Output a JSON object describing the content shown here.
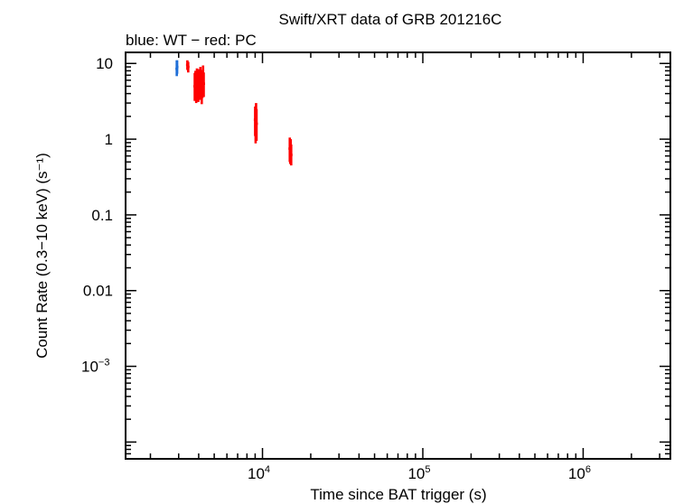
{
  "chart_data": {
    "type": "scatter",
    "title": "Swift/XRT data of GRB 201216C",
    "subtitle": "blue: WT − red: PC",
    "xlabel": "Time since BAT trigger (s)",
    "ylabel": "Count Rate (0.3−10 keV) (s⁻¹)",
    "x_scale": "log",
    "y_scale": "log",
    "xlim": [
      1400,
      3500000
    ],
    "ylim": [
      6e-05,
      14
    ],
    "grid": false,
    "x_tick_labels": [
      {
        "value": 10000,
        "base": "10",
        "exp": "4"
      },
      {
        "value": 100000,
        "base": "10",
        "exp": "5"
      },
      {
        "value": 1000000,
        "base": "10",
        "exp": "6"
      }
    ],
    "y_tick_labels": [
      {
        "value": 10,
        "text": "10"
      },
      {
        "value": 1,
        "text": "1"
      },
      {
        "value": 0.1,
        "text": "0.1"
      },
      {
        "value": 0.01,
        "text": "0.01"
      },
      {
        "value": 0.001,
        "base": "10",
        "exp": "−3"
      }
    ],
    "series": [
      {
        "color": "#1f6fd8",
        "points": [
          {
            "x": 2920,
            "y": 8.5,
            "ylo": 6.8,
            "yhi": 11.0
          },
          {
            "x": 2935,
            "y": 9.0,
            "ylo": 7.3,
            "yhi": 11.0
          }
        ]
      },
      {
        "color": "#ff0000",
        "points": [
          {
            "x": 3400,
            "y": 9.6,
            "ylo": 8.2,
            "yhi": 11.0
          },
          {
            "x": 3440,
            "y": 9.0,
            "ylo": 7.6,
            "yhi": 10.5
          },
          {
            "x": 3780,
            "y": 5.0,
            "ylo": 3.2,
            "yhi": 7.5
          },
          {
            "x": 3820,
            "y": 5.5,
            "ylo": 3.6,
            "yhi": 8.0
          },
          {
            "x": 3860,
            "y": 4.6,
            "ylo": 3.0,
            "yhi": 7.0
          },
          {
            "x": 3900,
            "y": 6.0,
            "ylo": 4.0,
            "yhi": 8.6
          },
          {
            "x": 3940,
            "y": 5.2,
            "ylo": 3.4,
            "yhi": 7.8
          },
          {
            "x": 3980,
            "y": 4.8,
            "ylo": 3.1,
            "yhi": 7.2
          },
          {
            "x": 4020,
            "y": 5.8,
            "ylo": 3.9,
            "yhi": 8.4
          },
          {
            "x": 4060,
            "y": 5.0,
            "ylo": 3.3,
            "yhi": 7.4
          },
          {
            "x": 4100,
            "y": 6.4,
            "ylo": 4.4,
            "yhi": 9.0
          },
          {
            "x": 4140,
            "y": 5.6,
            "ylo": 3.7,
            "yhi": 8.2
          },
          {
            "x": 4180,
            "y": 4.4,
            "ylo": 2.9,
            "yhi": 6.6
          },
          {
            "x": 4220,
            "y": 5.3,
            "ylo": 3.5,
            "yhi": 7.9
          },
          {
            "x": 4260,
            "y": 6.8,
            "ylo": 4.8,
            "yhi": 9.4
          },
          {
            "x": 4300,
            "y": 5.4,
            "ylo": 3.6,
            "yhi": 7.6
          },
          {
            "x": 9000,
            "y": 1.8,
            "ylo": 1.1,
            "yhi": 2.7
          },
          {
            "x": 9060,
            "y": 1.5,
            "ylo": 0.88,
            "yhi": 2.3
          },
          {
            "x": 9120,
            "y": 2.1,
            "ylo": 1.3,
            "yhi": 3.0
          },
          {
            "x": 9180,
            "y": 1.6,
            "ylo": 0.95,
            "yhi": 2.5
          },
          {
            "x": 14800,
            "y": 0.75,
            "ylo": 0.5,
            "yhi": 1.05
          },
          {
            "x": 14900,
            "y": 0.68,
            "ylo": 0.47,
            "yhi": 0.95
          },
          {
            "x": 15000,
            "y": 0.8,
            "ylo": 0.55,
            "yhi": 1.0
          },
          {
            "x": 15100,
            "y": 0.62,
            "ylo": 0.45,
            "yhi": 0.85
          }
        ]
      }
    ]
  }
}
